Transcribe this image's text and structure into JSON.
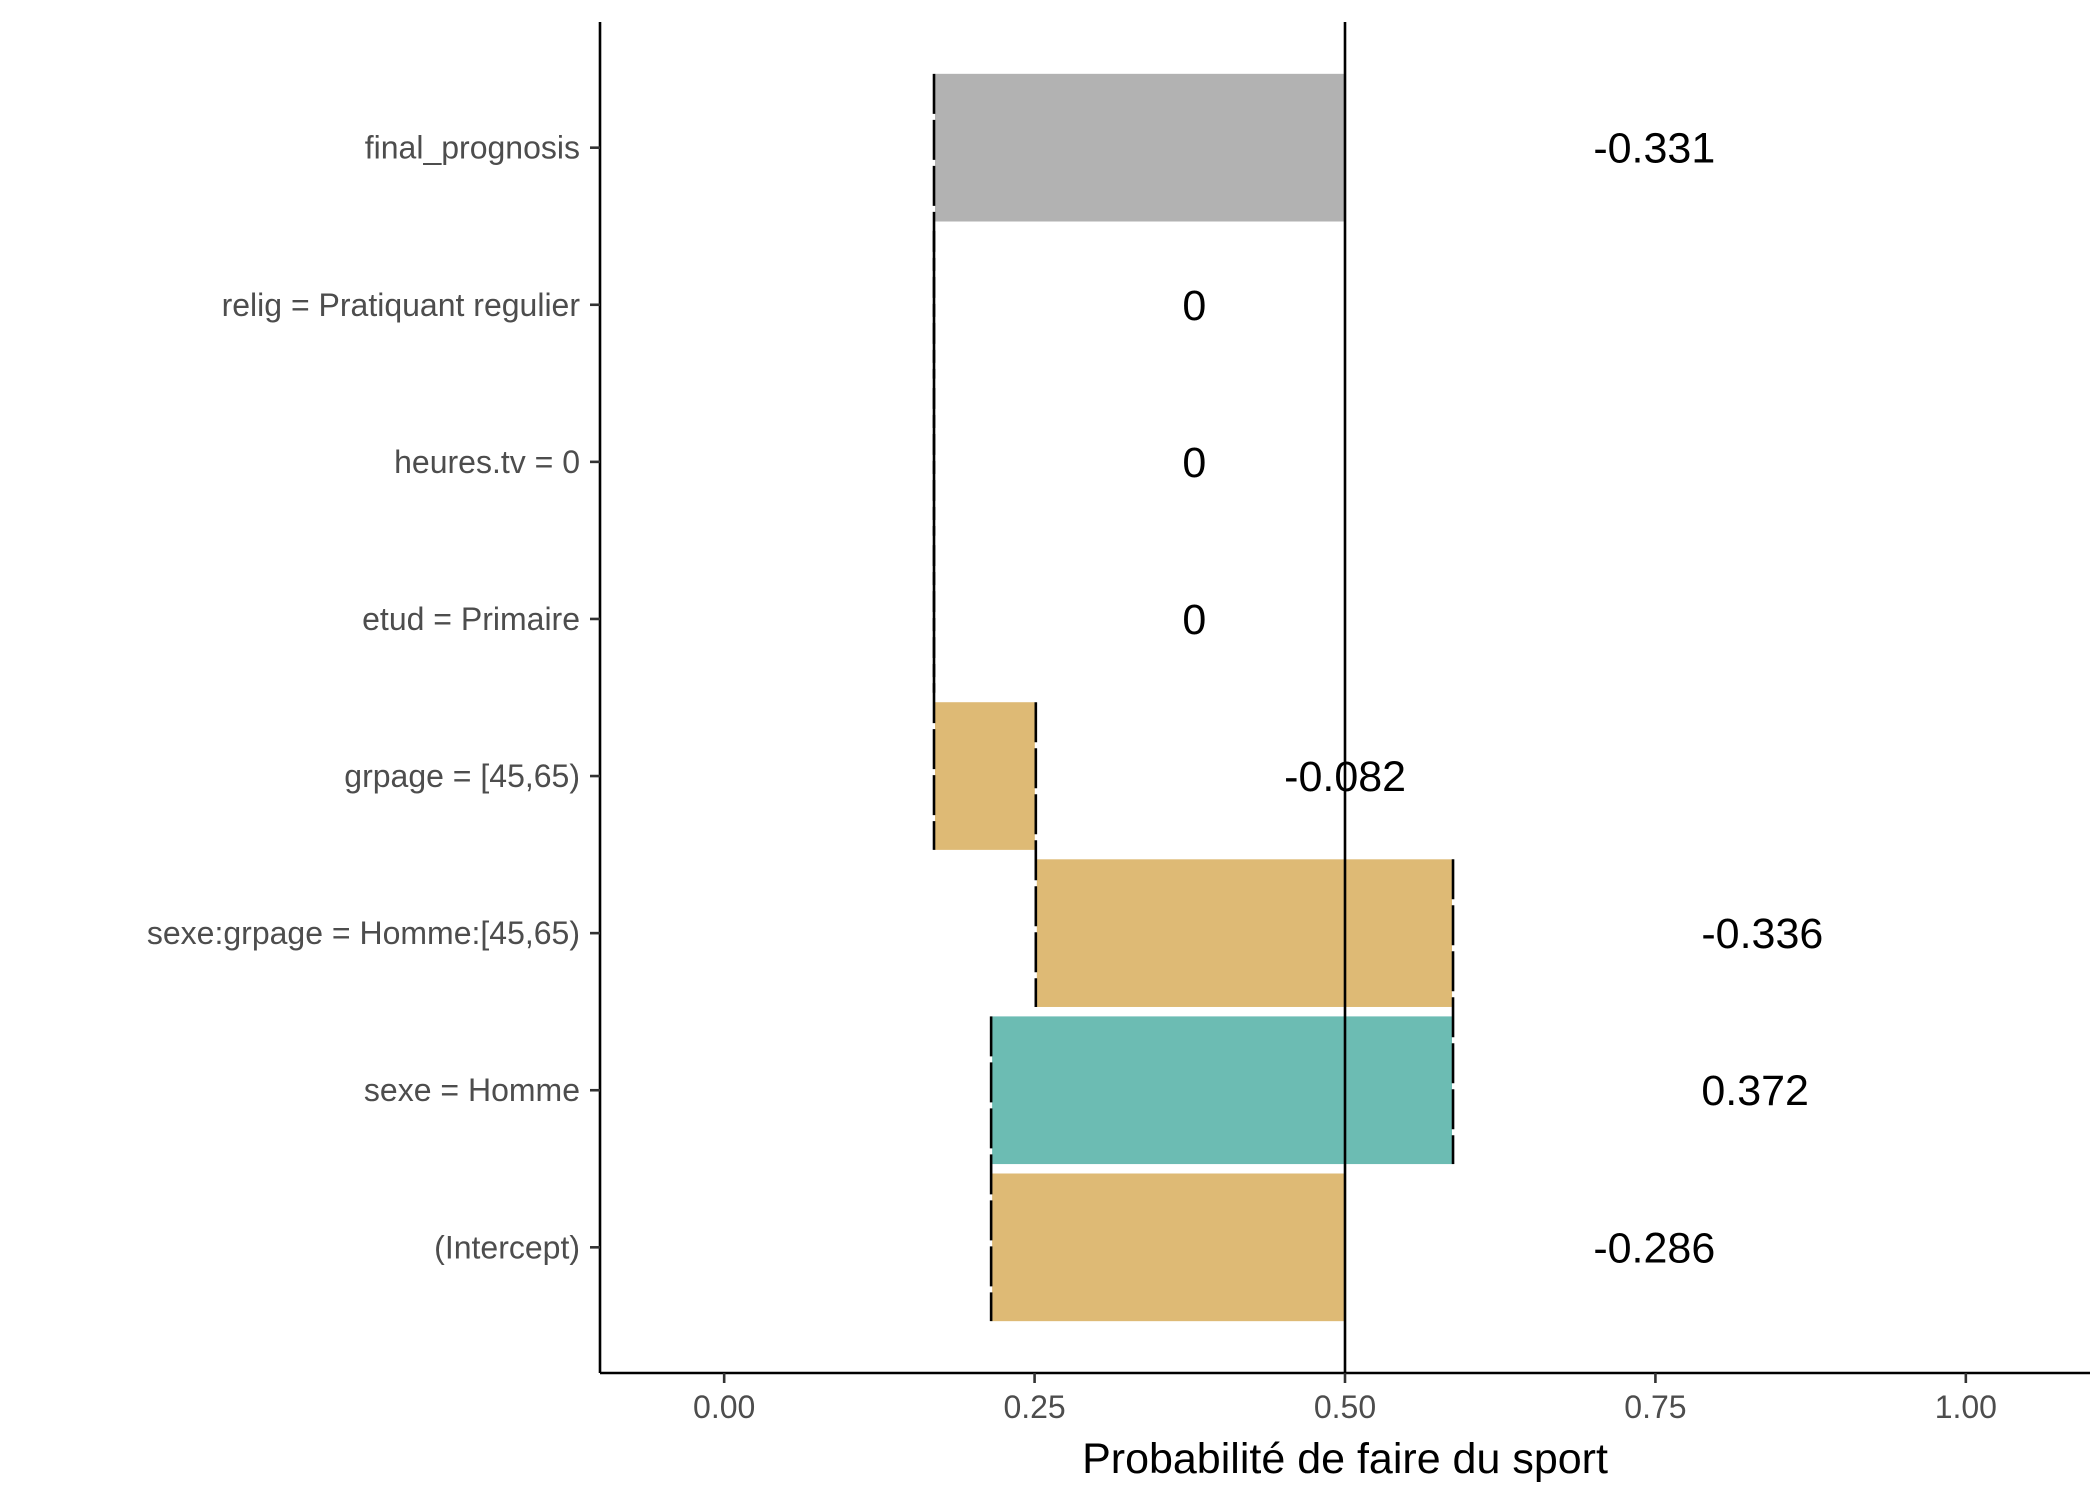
{
  "chart_data": {
    "type": "bar",
    "subtype": "breakdown-waterfall",
    "title": "",
    "xlabel": "Probabilité de faire du sport",
    "ylabel": "",
    "xlim": [
      -0.1,
      1.1
    ],
    "x_ticks": [
      0,
      0.25,
      0.5,
      0.75,
      1
    ],
    "x_tick_labels": [
      "0.00",
      "0.25",
      "0.50",
      "0.75",
      "1.00"
    ],
    "reference_line": 0.5,
    "grid": false,
    "legend": "none",
    "bars": [
      {
        "label": "final_prognosis",
        "start": 0.169,
        "end": 0.5,
        "value_label": "-0.331",
        "color": "#b2b2b2"
      },
      {
        "label": "relig = Pratiquant regulier",
        "start": 0.169,
        "end": 0.169,
        "value_label": "0",
        "color": "#deba75"
      },
      {
        "label": "heures.tv = 0",
        "start": 0.169,
        "end": 0.169,
        "value_label": "0",
        "color": "#deba75"
      },
      {
        "label": "etud = Primaire",
        "start": 0.169,
        "end": 0.169,
        "value_label": "0",
        "color": "#deba75"
      },
      {
        "label": "grpage = [45,65)",
        "start": 0.251,
        "end": 0.169,
        "value_label": "-0.082",
        "color": "#deba75"
      },
      {
        "label": "sexe:grpage = Homme:[45,65)",
        "start": 0.587,
        "end": 0.251,
        "value_label": "-0.336",
        "color": "#deba75"
      },
      {
        "label": "sexe = Homme",
        "start": 0.215,
        "end": 0.587,
        "value_label": "0.372",
        "color": "#6cbcb3"
      },
      {
        "label": "(Intercept)",
        "start": 0.5,
        "end": 0.215,
        "value_label": "-0.286",
        "color": "#deba75"
      }
    ]
  }
}
